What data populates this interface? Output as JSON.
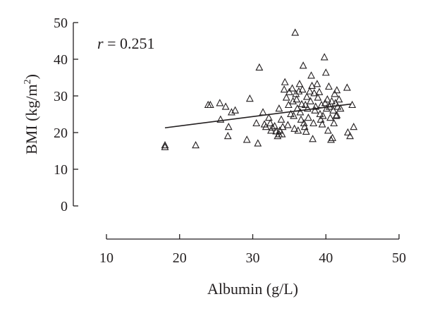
{
  "chart_data": {
    "type": "scatter",
    "annotation": {
      "var": "r",
      "text": " = 0.251"
    },
    "x_axis": {
      "label": "Albumin (g/L)",
      "min": 10,
      "max": 50,
      "ticks": [
        10,
        20,
        30,
        40,
        50
      ]
    },
    "y_axis": {
      "label_prefix": "BMI (kg/m",
      "label_sup": "2",
      "label_suffix": ")",
      "min": 0,
      "max": 50,
      "ticks": [
        0,
        10,
        20,
        30,
        40,
        50
      ]
    },
    "grid": false,
    "marker": "open-triangle",
    "trend_line": {
      "x": [
        18,
        43.5
      ],
      "y": [
        21.3,
        27.8
      ]
    },
    "points": [
      [
        18,
        16.5
      ],
      [
        18,
        16
      ],
      [
        22.2,
        16.5
      ],
      [
        23.9,
        27.5
      ],
      [
        24.2,
        27.5
      ],
      [
        25.5,
        28
      ],
      [
        25.6,
        23.5
      ],
      [
        26.3,
        27
      ],
      [
        26.6,
        19
      ],
      [
        26.7,
        21.5
      ],
      [
        27.1,
        25.5
      ],
      [
        27.6,
        26
      ],
      [
        29.2,
        18
      ],
      [
        29.6,
        29.2
      ],
      [
        30.5,
        22.5
      ],
      [
        30.7,
        17
      ],
      [
        30.9,
        37.7
      ],
      [
        31.4,
        25.5
      ],
      [
        31.6,
        22.2
      ],
      [
        31.8,
        21.5
      ],
      [
        32.2,
        24
      ],
      [
        32.4,
        22.5
      ],
      [
        32.5,
        20.5
      ],
      [
        32.7,
        21.3
      ],
      [
        33,
        21.7
      ],
      [
        33.2,
        20.3
      ],
      [
        33.4,
        19
      ],
      [
        33.6,
        19.5
      ],
      [
        33.6,
        26.5
      ],
      [
        33.7,
        20.5
      ],
      [
        33.9,
        23.5
      ],
      [
        34,
        19.5
      ],
      [
        34.1,
        21.5
      ],
      [
        34.3,
        31.7
      ],
      [
        34.4,
        33.7
      ],
      [
        34.6,
        29.5
      ],
      [
        34.8,
        22
      ],
      [
        34.9,
        27.5
      ],
      [
        35,
        31
      ],
      [
        35.2,
        25
      ],
      [
        35.4,
        32
      ],
      [
        35.5,
        28.5
      ],
      [
        35.6,
        24.5
      ],
      [
        35.7,
        21
      ],
      [
        35.8,
        47.2
      ],
      [
        35.9,
        30.5
      ],
      [
        36,
        29
      ],
      [
        36.1,
        26.5
      ],
      [
        36.2,
        20.5
      ],
      [
        36.3,
        31.2
      ],
      [
        36.4,
        33.2
      ],
      [
        36.5,
        25.5
      ],
      [
        36.6,
        23.5
      ],
      [
        36.7,
        27.7
      ],
      [
        36.8,
        31.7
      ],
      [
        36.9,
        38.2
      ],
      [
        37,
        22.5
      ],
      [
        37.1,
        21.5
      ],
      [
        37.2,
        27.5
      ],
      [
        37.3,
        20.2
      ],
      [
        37.4,
        29.7
      ],
      [
        37.5,
        26.5
      ],
      [
        37.6,
        24
      ],
      [
        37.8,
        31.2
      ],
      [
        37.9,
        28.5
      ],
      [
        38,
        35.5
      ],
      [
        38.1,
        32.7
      ],
      [
        38.2,
        18.2
      ],
      [
        38.3,
        22.5
      ],
      [
        38.4,
        30.7
      ],
      [
        38.5,
        26
      ],
      [
        38.6,
        27
      ],
      [
        38.8,
        33.2
      ],
      [
        38.9,
        29.5
      ],
      [
        39.1,
        31
      ],
      [
        39.2,
        25
      ],
      [
        39.3,
        23.5
      ],
      [
        39.4,
        27.5
      ],
      [
        39.5,
        22.2
      ],
      [
        39.6,
        24.5
      ],
      [
        39.8,
        40.5
      ],
      [
        39.9,
        28
      ],
      [
        40,
        36.3
      ],
      [
        40.1,
        26.5
      ],
      [
        40.2,
        29
      ],
      [
        40.3,
        20.5
      ],
      [
        40.4,
        32.5
      ],
      [
        40.5,
        27
      ],
      [
        40.6,
        24
      ],
      [
        40.7,
        18
      ],
      [
        40.8,
        28.5
      ],
      [
        40.9,
        18.5
      ],
      [
        41,
        26
      ],
      [
        41.1,
        22.5
      ],
      [
        41.2,
        30.5
      ],
      [
        41.3,
        28
      ],
      [
        41.4,
        24.5
      ],
      [
        41.5,
        31.5
      ],
      [
        41.6,
        27
      ],
      [
        41.8,
        29
      ],
      [
        42,
        26.5
      ],
      [
        42.9,
        32.2
      ],
      [
        43,
        20
      ],
      [
        43.3,
        19
      ],
      [
        43.6,
        27.5
      ],
      [
        43.8,
        21.5
      ],
      [
        41.5,
        24.7
      ]
    ]
  }
}
